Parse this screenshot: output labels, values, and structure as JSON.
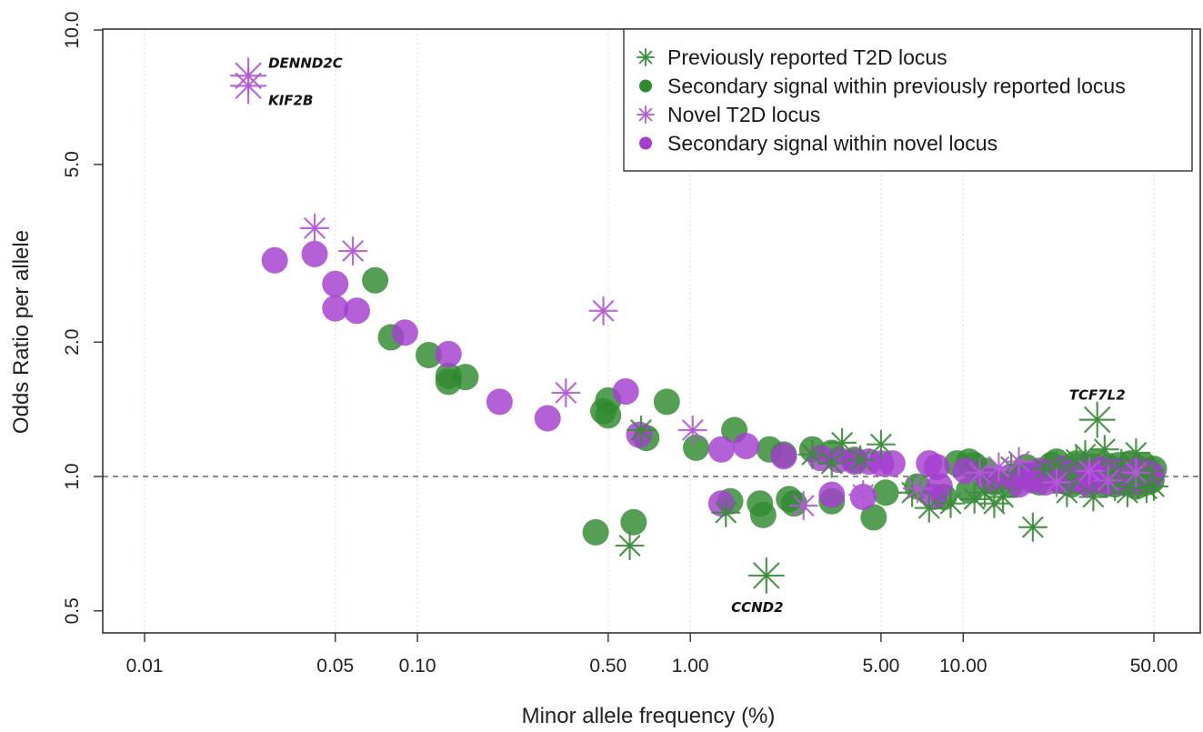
{
  "chart_data": {
    "type": "scatter",
    "x_scale": "log",
    "y_scale": "log",
    "xlabel": "Minor allele frequency (%)",
    "ylabel": "Odds Ratio per allele",
    "xlim": [
      0.006,
      75
    ],
    "ylim": [
      0.45,
      10
    ],
    "x_ticks": [
      0.01,
      0.05,
      0.1,
      0.5,
      1.0,
      5.0,
      10.0,
      50.0
    ],
    "x_tick_labels": [
      "0.01",
      "0.05",
      "0.10",
      "0.50",
      "1.00",
      "5.00",
      "10.00",
      "50.00"
    ],
    "y_ticks": [
      0.5,
      1.0,
      2.0,
      5.0,
      10.0
    ],
    "y_tick_labels": [
      "0.5",
      "1.0",
      "2.0",
      "5.0",
      "10.0"
    ],
    "reference_line": {
      "y": 1.0,
      "style": "dashed"
    },
    "grid": "vertical dotted at x ticks",
    "legend_position": "top-right",
    "series": [
      {
        "name": "Previously reported T2D locus",
        "marker": "asterisk",
        "color": "#3a8c3a",
        "points": [
          [
            0.6,
            0.7
          ],
          [
            1.35,
            0.83
          ],
          [
            1.9,
            0.6
          ],
          [
            0.66,
            1.27
          ],
          [
            3.6,
            1.19
          ],
          [
            5.0,
            1.18
          ],
          [
            2.8,
            1.12
          ],
          [
            3.3,
            1.07
          ],
          [
            4.2,
            1.09
          ],
          [
            6.5,
            0.92
          ],
          [
            7.5,
            0.85
          ],
          [
            9.0,
            0.87
          ],
          [
            11,
            0.89
          ],
          [
            12,
            0.92
          ],
          [
            13,
            0.87
          ],
          [
            14,
            0.9
          ],
          [
            18,
            0.77
          ],
          [
            31,
            1.34
          ],
          [
            20,
            1.04
          ],
          [
            22,
            1.06
          ],
          [
            24,
            0.92
          ],
          [
            26,
            1.09
          ],
          [
            28,
            1.12
          ],
          [
            30,
            0.9
          ],
          [
            33,
            1.15
          ],
          [
            36,
            0.95
          ],
          [
            40,
            0.92
          ],
          [
            43,
            1.13
          ],
          [
            47,
            0.94
          ],
          [
            50,
            0.95
          ],
          [
            15,
            1.05
          ],
          [
            25,
            1.0
          ],
          [
            35,
            1.02
          ],
          [
            45,
            1.0
          ],
          [
            38,
            1.07
          ],
          [
            42,
            0.97
          ],
          [
            48,
            1.03
          ]
        ]
      },
      {
        "name": "Secondary signal within previously reported locus",
        "marker": "circle",
        "color": "#2f8a2f",
        "points": [
          [
            0.07,
            2.75
          ],
          [
            0.08,
            2.05
          ],
          [
            0.11,
            1.87
          ],
          [
            0.13,
            1.63
          ],
          [
            0.15,
            1.67
          ],
          [
            0.13,
            1.68
          ],
          [
            0.48,
            1.4
          ],
          [
            0.5,
            1.48
          ],
          [
            0.5,
            1.37
          ],
          [
            0.82,
            1.47
          ],
          [
            0.69,
            1.22
          ],
          [
            1.05,
            1.16
          ],
          [
            1.45,
            1.27
          ],
          [
            1.95,
            1.15
          ],
          [
            2.2,
            1.12
          ],
          [
            2.8,
            1.15
          ],
          [
            3.3,
            1.13
          ],
          [
            4.0,
            1.09
          ],
          [
            0.45,
            0.75
          ],
          [
            0.62,
            0.79
          ],
          [
            1.4,
            0.88
          ],
          [
            1.8,
            0.87
          ],
          [
            1.85,
            0.82
          ],
          [
            2.3,
            0.89
          ],
          [
            2.4,
            0.87
          ],
          [
            3.3,
            0.88
          ],
          [
            4.7,
            0.81
          ],
          [
            5.2,
            0.92
          ],
          [
            6.8,
            0.95
          ],
          [
            8.5,
            0.9
          ],
          [
            10.5,
            0.93
          ],
          [
            9.5,
            1.07
          ],
          [
            10.5,
            1.08
          ],
          [
            11,
            1.06
          ],
          [
            12,
            1.03
          ],
          [
            13,
            0.97
          ],
          [
            15,
            0.96
          ],
          [
            16,
            1.0
          ],
          [
            17,
            1.05
          ],
          [
            18,
            0.99
          ],
          [
            19,
            0.97
          ],
          [
            20,
            1.02
          ],
          [
            21,
            1.06
          ],
          [
            22,
            1.08
          ],
          [
            23,
            0.98
          ],
          [
            24,
            1.04
          ],
          [
            25,
            0.96
          ],
          [
            26,
            1.07
          ],
          [
            27,
            1.02
          ],
          [
            28,
            0.97
          ],
          [
            29,
            1.05
          ],
          [
            30,
            0.99
          ],
          [
            31,
            1.08
          ],
          [
            32,
            1.03
          ],
          [
            33,
            0.96
          ],
          [
            34,
            1.05
          ],
          [
            35,
            1.0
          ],
          [
            36,
            0.96
          ],
          [
            37,
            1.06
          ],
          [
            38,
            0.99
          ],
          [
            39,
            1.03
          ],
          [
            40,
            0.97
          ],
          [
            41,
            1.07
          ],
          [
            42,
            1.0
          ],
          [
            43,
            0.95
          ],
          [
            44,
            1.04
          ],
          [
            45,
            0.99
          ],
          [
            46,
            1.06
          ],
          [
            47,
            0.97
          ],
          [
            48,
            1.02
          ],
          [
            49,
            0.98
          ],
          [
            50,
            1.04
          ]
        ]
      },
      {
        "name": "Novel T2D locus",
        "marker": "asterisk",
        "color": "#b25ad6",
        "points": [
          [
            0.024,
            7.9
          ],
          [
            0.024,
            7.5
          ],
          [
            0.042,
            3.6
          ],
          [
            0.058,
            3.2
          ],
          [
            0.48,
            2.35
          ],
          [
            0.35,
            1.54
          ],
          [
            1.02,
            1.27
          ],
          [
            2.6,
            0.86
          ],
          [
            4.3,
            0.91
          ],
          [
            6.8,
            0.94
          ],
          [
            11.5,
            1.02
          ],
          [
            13.5,
            1.05
          ],
          [
            16,
            1.08
          ],
          [
            22,
            0.97
          ],
          [
            29,
            1.03
          ],
          [
            34,
            0.98
          ],
          [
            43,
            1.02
          ]
        ]
      },
      {
        "name": "Secondary signal within novel locus",
        "marker": "circle",
        "color": "#a43ed0",
        "points": [
          [
            0.03,
            3.05
          ],
          [
            0.042,
            3.15
          ],
          [
            0.05,
            2.7
          ],
          [
            0.05,
            2.38
          ],
          [
            0.06,
            2.35
          ],
          [
            0.09,
            2.1
          ],
          [
            0.13,
            1.88
          ],
          [
            0.2,
            1.47
          ],
          [
            0.3,
            1.35
          ],
          [
            0.58,
            1.55
          ],
          [
            0.65,
            1.24
          ],
          [
            1.3,
            1.15
          ],
          [
            1.6,
            1.17
          ],
          [
            2.2,
            1.11
          ],
          [
            3.0,
            1.1
          ],
          [
            3.5,
            1.09
          ],
          [
            4.0,
            1.08
          ],
          [
            4.5,
            1.08
          ],
          [
            5.0,
            1.07
          ],
          [
            5.5,
            1.07
          ],
          [
            7.5,
            1.07
          ],
          [
            8.0,
            1.05
          ],
          [
            3.3,
            0.91
          ],
          [
            4.3,
            0.9
          ],
          [
            1.3,
            0.87
          ],
          [
            7.8,
            0.9
          ],
          [
            8.2,
            0.95
          ],
          [
            10.2,
            1.03
          ],
          [
            12.5,
            0.98
          ],
          [
            15,
            1.0
          ],
          [
            16,
            0.96
          ],
          [
            17,
            1.01
          ],
          [
            18,
            0.98
          ],
          [
            19,
            1.03
          ],
          [
            20,
            0.97
          ],
          [
            21,
            1.02
          ],
          [
            22,
            0.99
          ],
          [
            23,
            1.04
          ],
          [
            24,
            0.97
          ],
          [
            25,
            1.01
          ],
          [
            26,
            0.98
          ],
          [
            27,
            1.03
          ],
          [
            28,
            0.99
          ],
          [
            29,
            0.96
          ],
          [
            30,
            1.02
          ],
          [
            31,
            0.98
          ],
          [
            32,
            1.04
          ],
          [
            33,
            1.0
          ],
          [
            34,
            0.97
          ],
          [
            35,
            1.02
          ],
          [
            36,
            0.99
          ],
          [
            37,
            1.03
          ],
          [
            38,
            0.97
          ],
          [
            39,
            1.01
          ],
          [
            40,
            0.98
          ],
          [
            41,
            1.02
          ],
          [
            42,
            0.99
          ],
          [
            43,
            0.97
          ],
          [
            44,
            1.03
          ],
          [
            45,
            1.0
          ],
          [
            46,
            0.98
          ],
          [
            47,
            1.02
          ],
          [
            48,
            0.99
          ],
          [
            49,
            1.01
          ]
        ]
      }
    ],
    "annotations": [
      {
        "text": "DENND2C",
        "x": 0.024,
        "y": 7.9
      },
      {
        "text": "KIF2B",
        "x": 0.024,
        "y": 7.5
      },
      {
        "text": "TCF7L2",
        "x": 31,
        "y": 1.34
      },
      {
        "text": "CCND2",
        "x": 1.9,
        "y": 0.6
      }
    ]
  }
}
